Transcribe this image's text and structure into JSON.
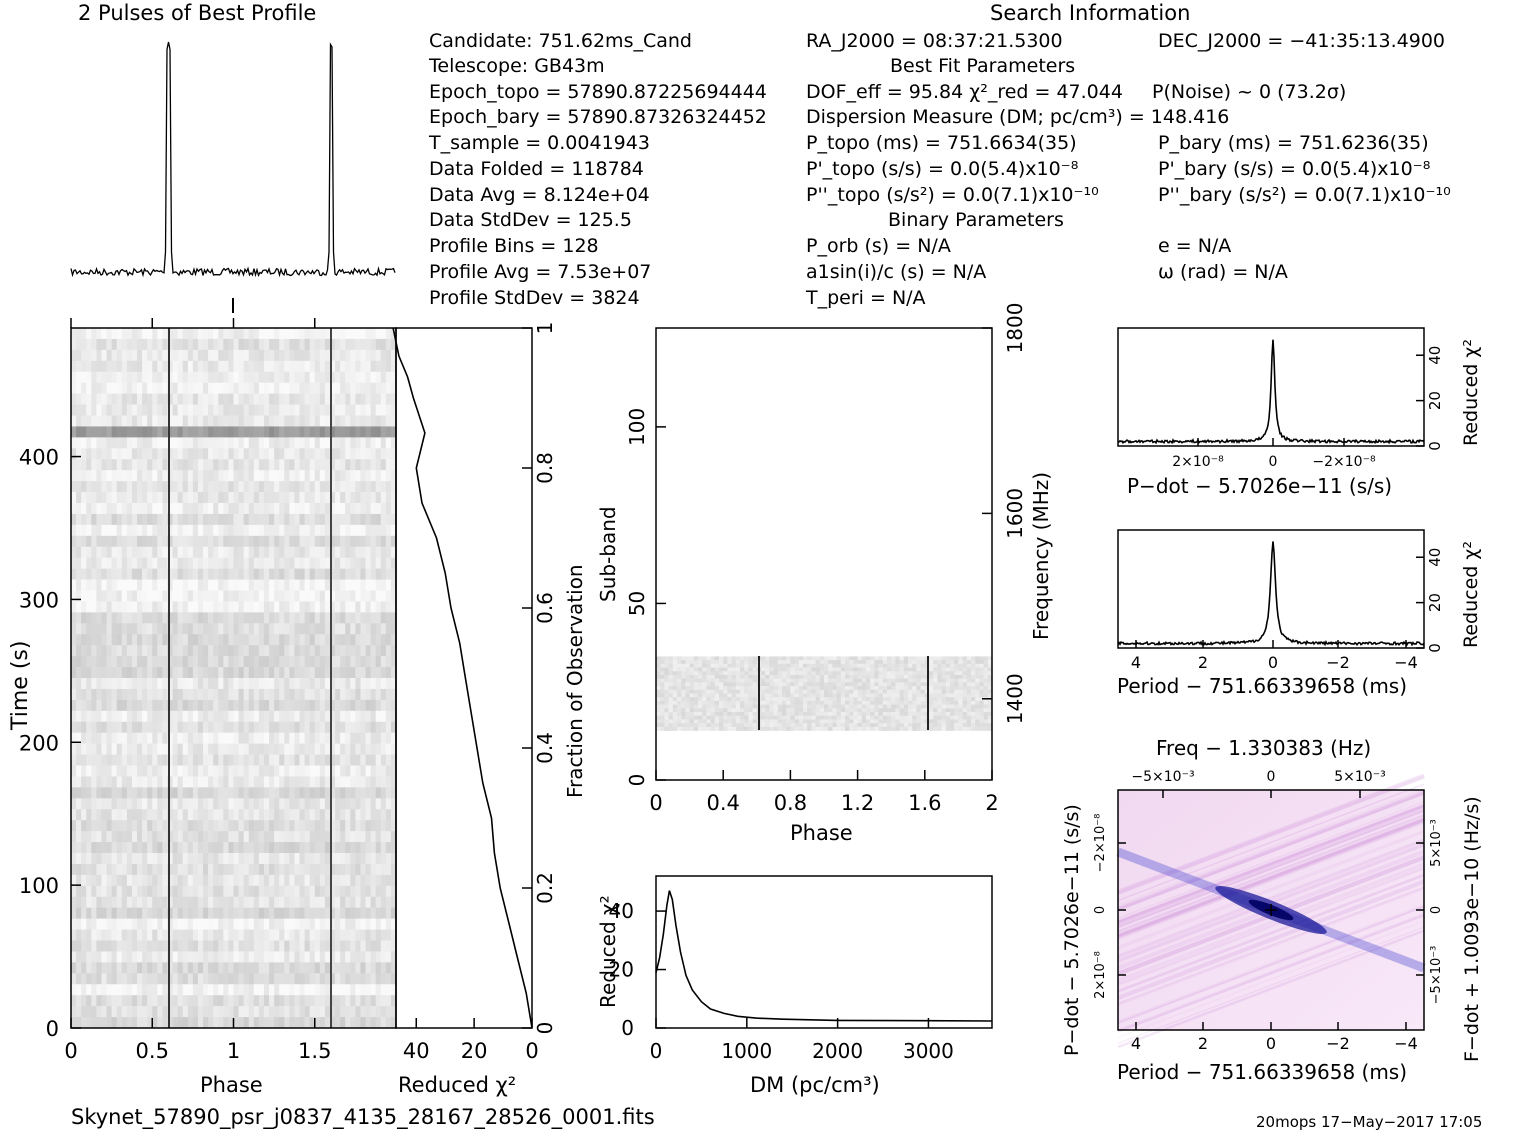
{
  "window": {
    "title": "2 Pulses of Best Profile"
  },
  "search": {
    "title": "Search Information",
    "best_fit_title": "Best Fit Parameters",
    "binary_title": "Binary Parameters"
  },
  "info": {
    "candidate": "Candidate:  751.62ms_Cand",
    "telescope": "Telescope:  GB43m",
    "epoch_topo": "Epoch_topo = 57890.87225694444",
    "epoch_bary": "Epoch_bary = 57890.87326324452",
    "t_sample": "T_sample  =  0.0041943",
    "data_folded": "Data Folded  =  118784",
    "data_avg": "Data Avg  =  8.124e+04",
    "data_stddev": "Data StdDev  =  125.5",
    "profile_bins": "Profile Bins  =  128",
    "profile_avg": "Profile Avg  =  7.53e+07",
    "profile_stddev": "Profile StdDev  =  3824"
  },
  "params": {
    "ra": "RA_J2000 = 08:37:21.5300",
    "dec": "DEC_J2000 = −41:35:13.4900",
    "dof": "DOF_eff = 95.84  χ²_red = 47.044",
    "p_noise": "P(Noise) ~ 0   (73.2σ)",
    "dm": "Dispersion Measure (DM; pc/cm³) = 148.416",
    "p_topo": "P_topo (ms) =  751.6634(35)",
    "p_bary": "P_bary (ms) =  751.6236(35)",
    "pd_topo": "P'_topo (s/s) = 0.0(5.4)x10⁻⁸",
    "pd_bary": "P'_bary (s/s) = 0.0(5.4)x10⁻⁸",
    "pdd_topo": "P''_topo (s/s²) = 0.0(7.1)x10⁻¹⁰",
    "pdd_bary": "P''_bary (s/s²) = 0.0(7.1)x10⁻¹⁰",
    "p_orb": "P_orb (s) = N/A",
    "e": "e = N/A",
    "a1sini": "a1sin(i)/c (s) = N/A",
    "omega": "ω (rad) = N/A",
    "t_peri": "T_peri = N/A"
  },
  "footer": {
    "filename": "Skynet_57890_psr_j0837_4135_28167_28526_0001.fits",
    "stamp": "20mops 17−May−2017 17:05"
  },
  "chart_data": [
    {
      "id": "best-profile",
      "type": "line",
      "title": "2 Pulses of Best Profile",
      "xlim": [
        0,
        2
      ],
      "pulse_phases": [
        0.6,
        1.6
      ]
    },
    {
      "id": "time-phase",
      "type": "heatmap",
      "xlabel": "Phase",
      "ylabel": "Time (s)",
      "xlim": [
        0,
        2
      ],
      "ylim": [
        0,
        490
      ],
      "xticks": [
        "0",
        "0.5",
        "1",
        "1.5"
      ],
      "yticks": [
        "0",
        "100",
        "200",
        "300",
        "400"
      ],
      "pulse_phases": [
        0.6,
        1.6
      ]
    },
    {
      "id": "time-chi2",
      "type": "line",
      "xlabel": "Reduced χ²",
      "ylabel": "Fraction of Observation",
      "xlim": [
        47,
        0
      ],
      "ylim": [
        0,
        1
      ],
      "xticks": [
        "40",
        "20",
        "0"
      ],
      "yticks": [
        "0",
        "0.2",
        "0.4",
        "0.6",
        "0.8",
        "1"
      ],
      "fraction": [
        0,
        0.05,
        0.1,
        0.15,
        0.2,
        0.25,
        0.3,
        0.35,
        0.4,
        0.45,
        0.5,
        0.55,
        0.6,
        0.65,
        0.7,
        0.75,
        0.8,
        0.85,
        0.9,
        0.93,
        0.96,
        1
      ],
      "chi2": [
        0,
        2,
        5,
        8,
        11,
        13,
        14,
        17,
        19,
        21,
        23,
        25,
        28,
        30,
        33,
        38,
        40,
        37,
        41,
        43,
        46,
        48
      ]
    },
    {
      "id": "subband-phase",
      "type": "heatmap",
      "xlabel": "Phase",
      "ylabel": "Sub-band",
      "y2label": "Frequency (MHz)",
      "xlim": [
        0,
        2
      ],
      "ylim": [
        0,
        128
      ],
      "xticks": [
        "0",
        "0.4",
        "0.8",
        "1.2",
        "1.6",
        "2"
      ],
      "yticks": [
        "0",
        "50",
        "100"
      ],
      "y2ticks": [
        "1400",
        "1600",
        "1800"
      ],
      "band_range": [
        14,
        35
      ],
      "pulse_phases": [
        0.6,
        1.6
      ]
    },
    {
      "id": "dm-chi2",
      "type": "line",
      "xlabel": "DM (pc/cm³)",
      "ylabel": "Reduced χ²",
      "xlim": [
        0,
        3700
      ],
      "ylim": [
        0,
        52
      ],
      "xticks": [
        "0",
        "1000",
        "2000",
        "3000"
      ],
      "yticks": [
        "0",
        "20",
        "40"
      ],
      "x": [
        0,
        40,
        80,
        120,
        148,
        180,
        220,
        270,
        330,
        400,
        500,
        600,
        750,
        900,
        1100,
        1400,
        2000,
        3000,
        3700
      ],
      "y": [
        19,
        24,
        32,
        42,
        47,
        44,
        35,
        26,
        18,
        13,
        9,
        6.5,
        5,
        4,
        3.4,
        3,
        2.6,
        2.5,
        2.4
      ]
    },
    {
      "id": "pdot-chi2",
      "type": "line",
      "xlabel": "P−dot − 5.7026e−11 (s/s)",
      "ylabel": "Reduced χ²",
      "xticks": [
        "2×10⁻⁸",
        "0",
        "−2×10⁻⁸"
      ],
      "yticks": [
        "0",
        "20",
        "40"
      ],
      "ylim": [
        0,
        52
      ],
      "peak": 47
    },
    {
      "id": "period-chi2",
      "type": "line",
      "xlabel": "Period − 751.66339658 (ms)",
      "ylabel": "Reduced χ²",
      "xticks": [
        "4",
        "2",
        "0",
        "−2",
        "−4"
      ],
      "yticks": [
        "0",
        "20",
        "40"
      ],
      "ylim": [
        0,
        52
      ],
      "peak": 47
    },
    {
      "id": "p-pdot-plane",
      "type": "heatmap",
      "title": "Freq − 1.330383 (Hz)",
      "xlabel": "Period − 751.66339658 (ms)",
      "ylabel": "P−dot − 5.7026e−11 (s/s)",
      "y2label": "F−dot + 1.0093e−10 (Hz/s)",
      "xticks": [
        "4",
        "2",
        "0",
        "−2",
        "−4"
      ],
      "x2ticks": [
        "−5×10⁻³",
        "0",
        "5×10⁻³"
      ],
      "yticks": [
        "−2×10⁻⁸",
        "0",
        "2×10⁻⁸"
      ],
      "y2ticks": [
        "5×10⁻³",
        "0",
        "−5×10⁻³"
      ]
    }
  ]
}
